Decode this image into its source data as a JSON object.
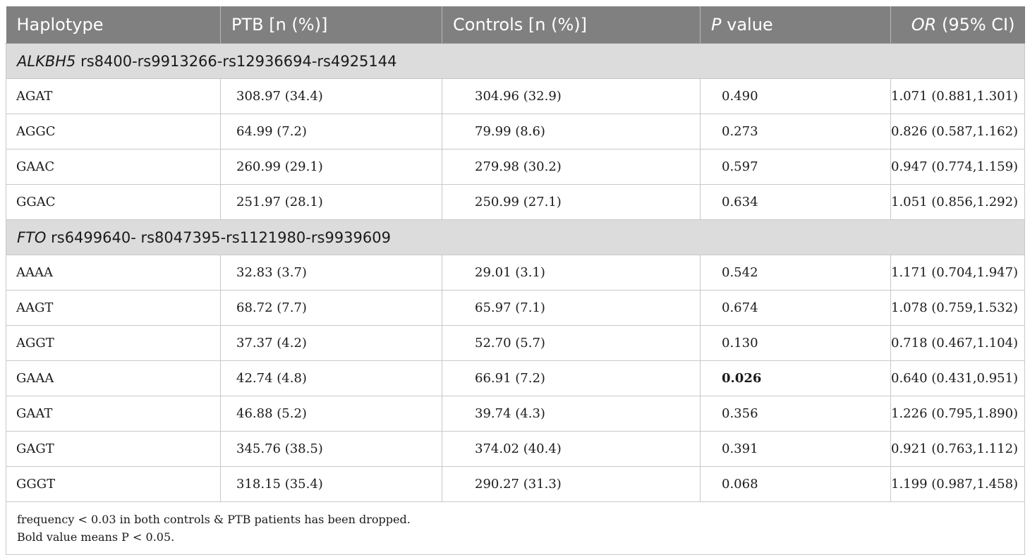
{
  "headers": {
    "haplotype": "Haplotype",
    "ptb": "PTB [n (%)]",
    "controls": "Controls [n (%)]",
    "p_italic": "P",
    "p_rest": " value",
    "or_italic": "OR",
    "or_rest": " (95% CI)"
  },
  "sections": [
    {
      "gene": "ALKBH5",
      "snps": " rs8400-rs9913266-rs12936694-rs4925144",
      "rows": [
        {
          "hap": "AGAT",
          "ptb": "308.97 (34.4)",
          "ctrl": "304.96 (32.9)",
          "p": "0.490",
          "or": "1.071 (0.881,1.301)",
          "bold": false
        },
        {
          "hap": "AGGC",
          "ptb": "64.99 (7.2)",
          "ctrl": "79.99 (8.6)",
          "p": "0.273",
          "or": "0.826 (0.587,1.162)",
          "bold": false
        },
        {
          "hap": "GAAC",
          "ptb": "260.99 (29.1)",
          "ctrl": "279.98 (30.2)",
          "p": "0.597",
          "or": "0.947 (0.774,1.159)",
          "bold": false
        },
        {
          "hap": "GGAC",
          "ptb": "251.97 (28.1)",
          "ctrl": "250.99 (27.1)",
          "p": "0.634",
          "or": "1.051 (0.856,1.292)",
          "bold": false
        }
      ]
    },
    {
      "gene": "FTO",
      "snps": " rs6499640- rs8047395-rs1121980-rs9939609",
      "rows": [
        {
          "hap": "AAAA",
          "ptb": "32.83 (3.7)",
          "ctrl": "29.01 (3.1)",
          "p": "0.542",
          "or": "1.171 (0.704,1.947)",
          "bold": false
        },
        {
          "hap": "AAGT",
          "ptb": "68.72 (7.7)",
          "ctrl": "65.97 (7.1)",
          "p": "0.674",
          "or": "1.078 (0.759,1.532)",
          "bold": false
        },
        {
          "hap": "AGGT",
          "ptb": "37.37 (4.2)",
          "ctrl": "52.70 (5.7)",
          "p": "0.130",
          "or": "0.718 (0.467,1.104)",
          "bold": false
        },
        {
          "hap": "GAAA",
          "ptb": "42.74 (4.8)",
          "ctrl": "66.91 (7.2)",
          "p": "0.026",
          "or": "0.640 (0.431,0.951)",
          "bold": true
        },
        {
          "hap": "GAAT",
          "ptb": "46.88 (5.2)",
          "ctrl": "39.74 (4.3)",
          "p": "0.356",
          "or": "1.226 (0.795,1.890)",
          "bold": false
        },
        {
          "hap": "GAGT",
          "ptb": "345.76 (38.5)",
          "ctrl": "374.02 (40.4)",
          "p": "0.391",
          "or": "0.921 (0.763,1.112)",
          "bold": false
        },
        {
          "hap": "GGGT",
          "ptb": "318.15 (35.4)",
          "ctrl": "290.27 (31.3)",
          "p": "0.068",
          "or": "1.199 (0.987,1.458)",
          "bold": false
        }
      ]
    }
  ],
  "footnotes": [
    "frequency < 0.03 in both controls & PTB patients has been dropped.",
    "Bold value means P < 0.05."
  ]
}
